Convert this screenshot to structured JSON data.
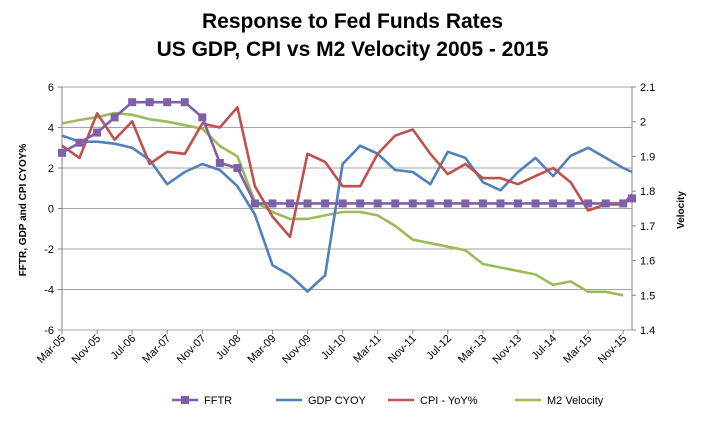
{
  "chart_data": {
    "type": "line",
    "title": "Response to Fed Funds Rates",
    "subtitle": "US GDP, CPI vs M2 Velocity 2005 - 2015",
    "ylabel_left": "FFTR, GDP and CPI CYOY%",
    "ylabel_right": "Velocity",
    "xlabel": "",
    "ylim_left": [
      -6,
      6
    ],
    "ylim_right": [
      1.4,
      2.1
    ],
    "y_ticks_left": [
      "6",
      "4",
      "2",
      "0",
      "-2",
      "-4",
      "-6"
    ],
    "y_ticks_right": [
      "2.1",
      "2",
      "1.9",
      "1.8",
      "1.7",
      "1.6",
      "1.5",
      "1.4"
    ],
    "x_tick_labels": [
      "Mar-05",
      "Nov-05",
      "Jul-06",
      "Mar-07",
      "Nov-07",
      "Jul-08",
      "Mar-09",
      "Nov-09",
      "Jul-10",
      "Mar-11",
      "Nov-11",
      "Jul-12",
      "Mar-13",
      "Nov-13",
      "Jul-14",
      "Mar-15",
      "Nov-15"
    ],
    "gridlines": "horizontal",
    "legend_position": "bottom",
    "series": [
      {
        "name": "FFTR",
        "axis": "left",
        "color": "#7F5FA8",
        "marker": "square",
        "x": [
          "Mar-05",
          "Jul-05",
          "Nov-05",
          "Mar-06",
          "Jul-06",
          "Nov-06",
          "Mar-07",
          "Jul-07",
          "Nov-07",
          "Mar-08",
          "Jul-08",
          "Nov-08",
          "Mar-09",
          "Jul-09",
          "Nov-09",
          "Mar-10",
          "Jul-10",
          "Nov-10",
          "Mar-11",
          "Jul-11",
          "Nov-11",
          "Mar-12",
          "Jul-12",
          "Nov-12",
          "Mar-13",
          "Jul-13",
          "Nov-13",
          "Mar-14",
          "Jul-14",
          "Nov-14",
          "Mar-15",
          "Jul-15",
          "Nov-15",
          "Jan-16"
        ],
        "y": [
          2.75,
          3.25,
          3.75,
          4.5,
          5.25,
          5.25,
          5.25,
          5.25,
          4.5,
          2.25,
          2.0,
          0.25,
          0.25,
          0.25,
          0.25,
          0.25,
          0.25,
          0.25,
          0.25,
          0.25,
          0.25,
          0.25,
          0.25,
          0.25,
          0.25,
          0.25,
          0.25,
          0.25,
          0.25,
          0.25,
          0.25,
          0.25,
          0.25,
          0.5
        ]
      },
      {
        "name": "GDP CYOY",
        "axis": "left",
        "color": "#4F81BD",
        "marker": "none",
        "x": [
          "Mar-05",
          "Jul-05",
          "Nov-05",
          "Mar-06",
          "Jul-06",
          "Nov-06",
          "Mar-07",
          "Jul-07",
          "Nov-07",
          "Mar-08",
          "Jul-08",
          "Nov-08",
          "Mar-09",
          "Jul-09",
          "Nov-09",
          "Mar-10",
          "Jul-10",
          "Nov-10",
          "Mar-11",
          "Jul-11",
          "Nov-11",
          "Mar-12",
          "Jul-12",
          "Nov-12",
          "Mar-13",
          "Jul-13",
          "Nov-13",
          "Mar-14",
          "Jul-14",
          "Nov-14",
          "Mar-15",
          "Jul-15",
          "Nov-15",
          "Jan-16"
        ],
        "y": [
          3.6,
          3.3,
          3.3,
          3.2,
          3.0,
          2.4,
          1.2,
          1.8,
          2.2,
          1.9,
          1.1,
          -0.3,
          -2.8,
          -3.3,
          -4.1,
          -3.3,
          2.2,
          3.1,
          2.7,
          1.9,
          1.8,
          1.2,
          2.8,
          2.5,
          1.3,
          0.9,
          1.8,
          2.5,
          1.6,
          2.6,
          3.0,
          2.5,
          2.0,
          1.8
        ]
      },
      {
        "name": "CPI - YoY%",
        "axis": "left",
        "color": "#C0504D",
        "marker": "none",
        "x": [
          "Mar-05",
          "Jul-05",
          "Nov-05",
          "Mar-06",
          "Jul-06",
          "Nov-06",
          "Mar-07",
          "Jul-07",
          "Nov-07",
          "Mar-08",
          "Jul-08",
          "Nov-08",
          "Mar-09",
          "Jul-09",
          "Nov-09",
          "Mar-10",
          "Jul-10",
          "Nov-10",
          "Mar-11",
          "Jul-11",
          "Nov-11",
          "Mar-12",
          "Jul-12",
          "Nov-12",
          "Mar-13",
          "Jul-13",
          "Nov-13",
          "Mar-14",
          "Jul-14",
          "Nov-14",
          "Mar-15",
          "Jul-15",
          "Nov-15",
          "Jan-16"
        ],
        "y": [
          3.1,
          2.5,
          4.7,
          3.4,
          4.3,
          2.2,
          2.8,
          2.7,
          4.2,
          4.0,
          5.0,
          1.1,
          -0.4,
          -1.4,
          2.7,
          2.3,
          1.1,
          1.1,
          2.7,
          3.6,
          3.9,
          2.7,
          1.7,
          2.2,
          1.5,
          1.5,
          1.2,
          1.6,
          2.0,
          1.3,
          -0.1,
          0.2,
          0.2,
          0.7
        ]
      },
      {
        "name": "M2 Velocity",
        "axis": "right",
        "color": "#9BBB59",
        "marker": "none",
        "x": [
          "Mar-05",
          "Jul-05",
          "Nov-05",
          "Mar-06",
          "Jul-06",
          "Nov-06",
          "Mar-07",
          "Jul-07",
          "Nov-07",
          "Mar-08",
          "Jul-08",
          "Nov-08",
          "Mar-09",
          "Jul-09",
          "Nov-09",
          "Mar-10",
          "Jul-10",
          "Nov-10",
          "Mar-11",
          "Jul-11",
          "Nov-11",
          "Mar-12",
          "Jul-12",
          "Nov-12",
          "Mar-13",
          "Jul-13",
          "Nov-13",
          "Mar-14",
          "Jul-14",
          "Nov-14",
          "Mar-15",
          "Jul-15",
          "Nov-15"
        ],
        "y": [
          1.995,
          2.005,
          2.013,
          2.025,
          2.02,
          2.007,
          2.0,
          1.99,
          1.98,
          1.93,
          1.9,
          1.77,
          1.74,
          1.72,
          1.72,
          1.73,
          1.74,
          1.74,
          1.73,
          1.7,
          1.66,
          1.65,
          1.64,
          1.63,
          1.59,
          1.58,
          1.57,
          1.56,
          1.53,
          1.54,
          1.51,
          1.51,
          1.5
        ]
      }
    ]
  }
}
